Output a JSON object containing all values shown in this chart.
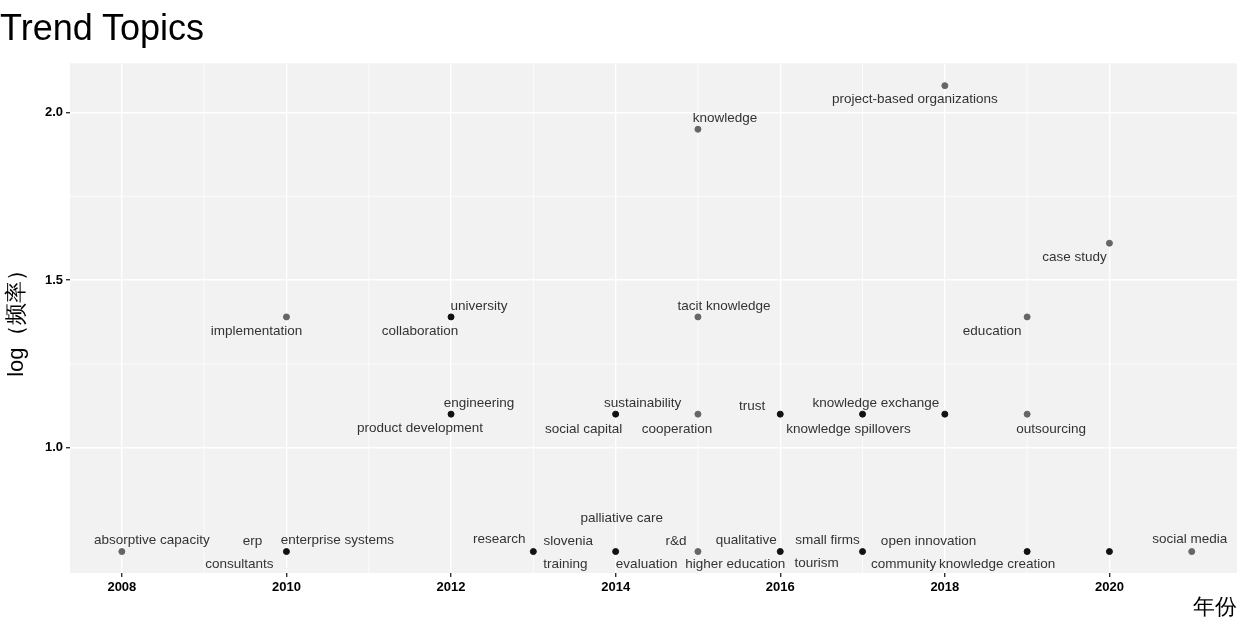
{
  "chart_data": {
    "type": "scatter",
    "title": "Trend Topics",
    "xlabel": "年份",
    "ylabel": "log（频率）",
    "x": [
      2008,
      2010,
      2013,
      2014,
      2015,
      2016,
      2017,
      2019,
      2020,
      2021,
      2010,
      2012,
      2015,
      2019,
      2012,
      2014,
      2015,
      2016,
      2017,
      2018,
      2019,
      2020,
      2015,
      2018
    ],
    "values": [
      0.69,
      0.69,
      0.69,
      0.69,
      0.69,
      0.69,
      0.69,
      0.69,
      0.69,
      0.69,
      1.39,
      1.39,
      1.39,
      1.39,
      1.1,
      1.1,
      1.1,
      1.1,
      1.1,
      1.1,
      1.1,
      1.61,
      1.95,
      2.08
    ],
    "colors": [
      "#666666",
      "#111111",
      "#111111",
      "#111111",
      "#666666",
      "#111111",
      "#111111",
      "#111111",
      "#111111",
      "#666666",
      "#666666",
      "#111111",
      "#666666",
      "#666666",
      "#111111",
      "#111111",
      "#666666",
      "#111111",
      "#111111",
      "#111111",
      "#666666",
      "#666666",
      "#666666",
      "#666666"
    ],
    "marker": "circle",
    "xlim": [
      2007.37,
      2021.55
    ],
    "xticks": [
      2008,
      2010,
      2012,
      2014,
      2016,
      2018,
      2020
    ],
    "ylim": [
      0.626,
      2.147
    ],
    "yticks": [
      {
        "value": 1,
        "label": "1.0"
      },
      1.5,
      {
        "value": 2,
        "label": "2.0"
      }
    ],
    "grid": true,
    "annotations": [
      {
        "text": "absorptive capacity",
        "x": 2008,
        "y": 0.69
      },
      {
        "text": "erp",
        "x": 2010,
        "y": 0.69
      },
      {
        "text": "consultants",
        "x": 2010,
        "y": 0.69
      },
      {
        "text": "enterprise systems",
        "x": 2010,
        "y": 0.69
      },
      {
        "text": "research",
        "x": 2013,
        "y": 0.69
      },
      {
        "text": "slovenia",
        "x": 2013,
        "y": 0.69
      },
      {
        "text": "training",
        "x": 2013,
        "y": 0.69
      },
      {
        "text": "palliative care",
        "x": 2014,
        "y": 0.69
      },
      {
        "text": "evaluation",
        "x": 2014,
        "y": 0.69
      },
      {
        "text": "r&d",
        "x": 2015,
        "y": 0.69
      },
      {
        "text": "higher education",
        "x": 2016,
        "y": 0.69
      },
      {
        "text": "qualitative",
        "x": 2016,
        "y": 0.69
      },
      {
        "text": "small firms",
        "x": 2017,
        "y": 0.69
      },
      {
        "text": "tourism",
        "x": 2017,
        "y": 0.69
      },
      {
        "text": "open innovation",
        "x": 2017,
        "y": 0.69
      },
      {
        "text": "community",
        "x": 2017,
        "y": 0.69
      },
      {
        "text": "knowledge creation",
        "x": 2019,
        "y": 0.69
      },
      {
        "text": "social media",
        "x": 2021,
        "y": 0.69
      },
      {
        "text": "implementation",
        "x": 2010,
        "y": 1.39
      },
      {
        "text": "university",
        "x": 2012,
        "y": 1.39
      },
      {
        "text": "collaboration",
        "x": 2012,
        "y": 1.39
      },
      {
        "text": "engineering",
        "x": 2012,
        "y": 1.1
      },
      {
        "text": "product development",
        "x": 2012,
        "y": 1.1
      },
      {
        "text": "sustainability",
        "x": 2014,
        "y": 1.1
      },
      {
        "text": "social capital",
        "x": 2014,
        "y": 1.1
      },
      {
        "text": "cooperation",
        "x": 2015,
        "y": 1.1
      },
      {
        "text": "tacit knowledge",
        "x": 2015,
        "y": 1.39
      },
      {
        "text": "knowledge",
        "x": 2015,
        "y": 1.95
      },
      {
        "text": "trust",
        "x": 2016,
        "y": 1.1
      },
      {
        "text": "knowledge spillovers",
        "x": 2017,
        "y": 1.1
      },
      {
        "text": "knowledge exchange",
        "x": 2018,
        "y": 1.1
      },
      {
        "text": "project-based organizations",
        "x": 2018,
        "y": 2.08
      },
      {
        "text": "education",
        "x": 2019,
        "y": 1.39
      },
      {
        "text": "outsourcing",
        "x": 2019,
        "y": 1.1
      },
      {
        "text": "case study",
        "x": 2020,
        "y": 1.61
      }
    ]
  }
}
